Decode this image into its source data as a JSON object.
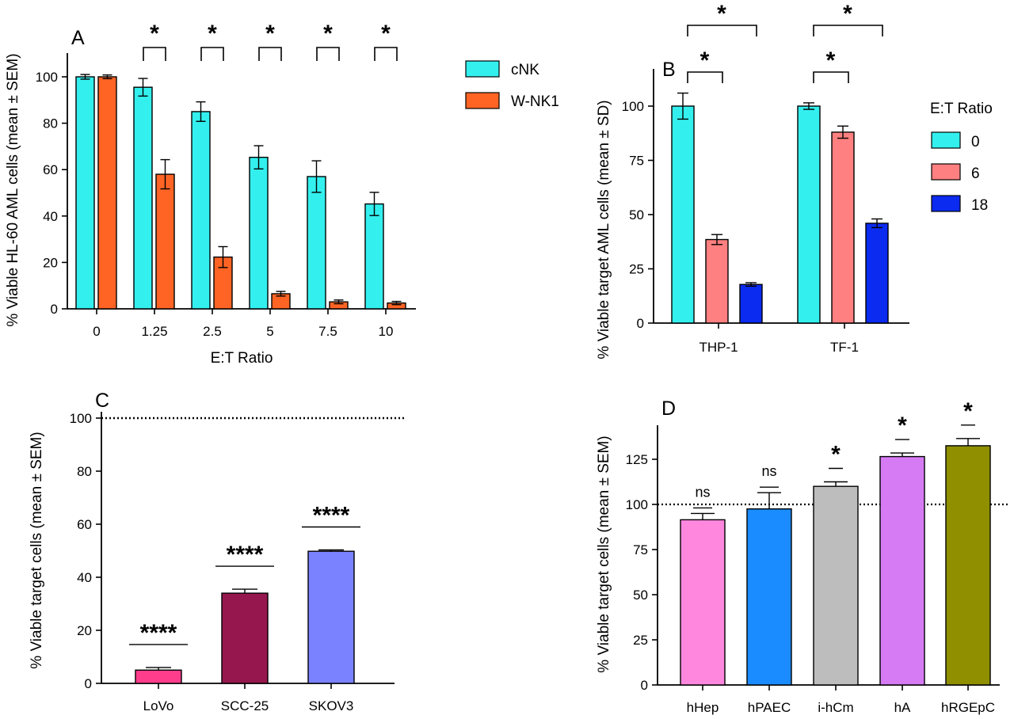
{
  "chart_data": [
    {
      "panel": "A",
      "type": "bar",
      "xlabel": "E:T  Ratio",
      "ylabel": "% Viable HL-60 AML cells (mean ± SEM)",
      "categories": [
        "0",
        "1.25",
        "2.5",
        "5",
        "7.5",
        "10"
      ],
      "ylim": [
        0,
        110
      ],
      "yticks": [
        0,
        20,
        40,
        60,
        80,
        100
      ],
      "series": [
        {
          "name": "cNK",
          "color": "#33F0EE",
          "values": [
            100,
            95.5,
            85,
            65.3,
            57,
            45.2
          ],
          "err": [
            1,
            3.8,
            4.2,
            5,
            6.8,
            5
          ]
        },
        {
          "name": "W-NK1",
          "color": "#FF6424",
          "values": [
            100,
            58,
            22.3,
            6.5,
            3,
            2.5
          ],
          "err": [
            0.8,
            6.3,
            4.5,
            1,
            0.8,
            0.7
          ]
        }
      ],
      "significance": [
        {
          "category": "1.25",
          "label": "*"
        },
        {
          "category": "2.5",
          "label": "*"
        },
        {
          "category": "5",
          "label": "*"
        },
        {
          "category": "7.5",
          "label": "*"
        },
        {
          "category": "10",
          "label": "*"
        }
      ],
      "legend": "right"
    },
    {
      "panel": "B",
      "type": "bar",
      "xlabel": "",
      "ylabel": "% Viable target AML cells (mean ± SD)",
      "categories": [
        "THP-1",
        "TF-1"
      ],
      "ylim": [
        0,
        110
      ],
      "yticks": [
        0,
        25,
        50,
        75,
        100
      ],
      "legend_title": "E:T Ratio",
      "series": [
        {
          "name": "0",
          "color": "#33F0EE",
          "values": [
            100,
            100
          ],
          "err": [
            6,
            1.5
          ]
        },
        {
          "name": "6",
          "color": "#FF8080",
          "values": [
            38.5,
            88
          ],
          "err": [
            2.3,
            2.8
          ]
        },
        {
          "name": "18",
          "color": "#0B2BF0",
          "values": [
            17.8,
            46
          ],
          "err": [
            0.8,
            2
          ]
        }
      ],
      "significance": [
        {
          "category": "THP-1",
          "pair": [
            "0",
            "6"
          ],
          "label": "*"
        },
        {
          "category": "THP-1",
          "pair": [
            "0",
            "18"
          ],
          "label": "*"
        },
        {
          "category": "TF-1",
          "pair": [
            "0",
            "6"
          ],
          "label": "*"
        },
        {
          "category": "TF-1",
          "pair": [
            "0",
            "18"
          ],
          "label": "*"
        }
      ],
      "legend": "right"
    },
    {
      "panel": "C",
      "type": "bar",
      "xlabel": "",
      "ylabel": "% Viable target cells (mean ± SEM)",
      "categories": [
        "LoVo",
        "SCC-25",
        "SKOV3"
      ],
      "colors": [
        "#FF3D8C",
        "#96174E",
        "#7B82FF"
      ],
      "values": [
        5,
        34,
        49.8
      ],
      "err": [
        1,
        1.5,
        0.5
      ],
      "ylim": [
        0,
        100
      ],
      "yticks": [
        0,
        20,
        40,
        60,
        80,
        100
      ],
      "reference_line": 100,
      "significance": [
        "****",
        "****",
        "****"
      ]
    },
    {
      "panel": "D",
      "type": "bar",
      "xlabel": "",
      "ylabel": "% Viable target cells (mean ± SEM)",
      "categories": [
        "hHep",
        "hPAEC",
        "i-hCm",
        "hA",
        "hRGEpC"
      ],
      "colors": [
        "#FF88DE",
        "#1A8CFF",
        "#BDBDBD",
        "#D77BF5",
        "#8F8F00"
      ],
      "values": [
        91.5,
        97.5,
        110,
        126.5,
        132.5
      ],
      "err": [
        3.5,
        9,
        2.5,
        2,
        4
      ],
      "ylim": [
        0,
        145
      ],
      "yticks": [
        0,
        25,
        50,
        75,
        100,
        125
      ],
      "reference_line": 100,
      "significance": [
        "ns",
        "ns",
        "*",
        "*",
        "*"
      ]
    }
  ]
}
